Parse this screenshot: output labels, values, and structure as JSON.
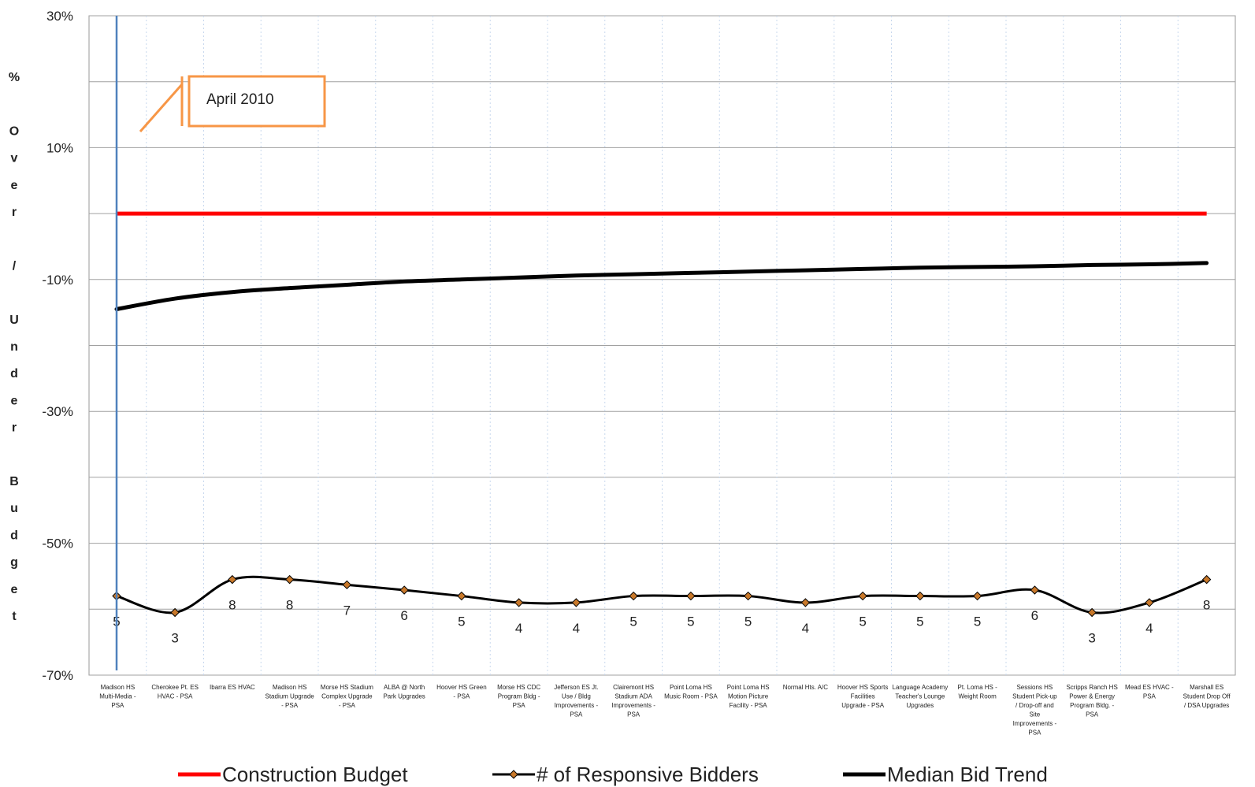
{
  "chart_data": {
    "type": "line",
    "ylabel": "% Over / Under Budget",
    "ylim": [
      -0.7,
      0.3
    ],
    "yticks": [
      {
        "value": 0.3,
        "label": "30%"
      },
      {
        "value": 0.1,
        "label": "10%"
      },
      {
        "value": -0.1,
        "label": "-10%"
      },
      {
        "value": -0.3,
        "label": "-30%"
      },
      {
        "value": -0.5,
        "label": "-50%"
      },
      {
        "value": -0.7,
        "label": "-70%"
      }
    ],
    "grid": true,
    "legend_position": "bottom",
    "categories": [
      "Madison HS Multi-Media - PSA",
      "Cherokee Pt. ES HVAC - PSA",
      "Ibarra ES HVAC",
      "Madison HS Stadium Upgrade - PSA",
      "Morse HS Stadium Complex Upgrade - PSA",
      "ALBA @ North Park Upgrades",
      "Hoover HS Green - PSA",
      "Morse HS CDC Program Bldg - PSA",
      "Jefferson ES Jt. Use / Bldg Improvements - PSA",
      "Clairemont HS Stadium ADA Improvements - PSA",
      "Point Loma HS Music Room - PSA",
      "Point Loma HS Motion Picture Facility - PSA",
      "Normal Hts. A/C",
      "Hoover HS Sports Facilities Upgrade - PSA",
      "Language Academy Teacher's Lounge Upgrades",
      "Pt. Loma HS - Weight Room",
      "Sessions HS Student Pick-up / Drop-off and Site Improvements - PSA",
      "Scripps Ranch HS Power & Energy Program Bldg. - PSA",
      "Mead ES HVAC - PSA",
      "Marshall ES Student Drop Off / DSA Upgrades"
    ],
    "series": [
      {
        "name": "Construction Budget",
        "color": "#ff0000",
        "values": [
          0,
          0,
          0,
          0,
          0,
          0,
          0,
          0,
          0,
          0,
          0,
          0,
          0,
          0,
          0,
          0,
          0,
          0,
          0,
          0
        ]
      },
      {
        "name": "# of Responsive Bidders",
        "color": "#000000",
        "marker": "diamond",
        "marker_color": "#c8782a",
        "bidder_counts": [
          5,
          3,
          8,
          8,
          7,
          6,
          5,
          4,
          4,
          5,
          5,
          5,
          4,
          5,
          5,
          5,
          6,
          3,
          4,
          8
        ],
        "values": [
          -0.58,
          -0.605,
          -0.555,
          -0.555,
          -0.563,
          -0.571,
          -0.58,
          -0.59,
          -0.59,
          -0.58,
          -0.58,
          -0.58,
          -0.59,
          -0.58,
          -0.58,
          -0.58,
          -0.571,
          -0.605,
          -0.59,
          -0.555
        ]
      },
      {
        "name": "Median Bid Trend",
        "color": "#000000",
        "values": [
          -0.145,
          -0.129,
          -0.119,
          -0.113,
          -0.108,
          -0.103,
          -0.1,
          -0.097,
          -0.094,
          -0.092,
          -0.09,
          -0.088,
          -0.086,
          -0.084,
          -0.082,
          -0.081,
          -0.08,
          -0.078,
          -0.077,
          -0.075
        ]
      }
    ],
    "annotation": {
      "text": "April 2010",
      "border_color": "#f79646"
    },
    "marker_line_color": "#4f81bd"
  }
}
